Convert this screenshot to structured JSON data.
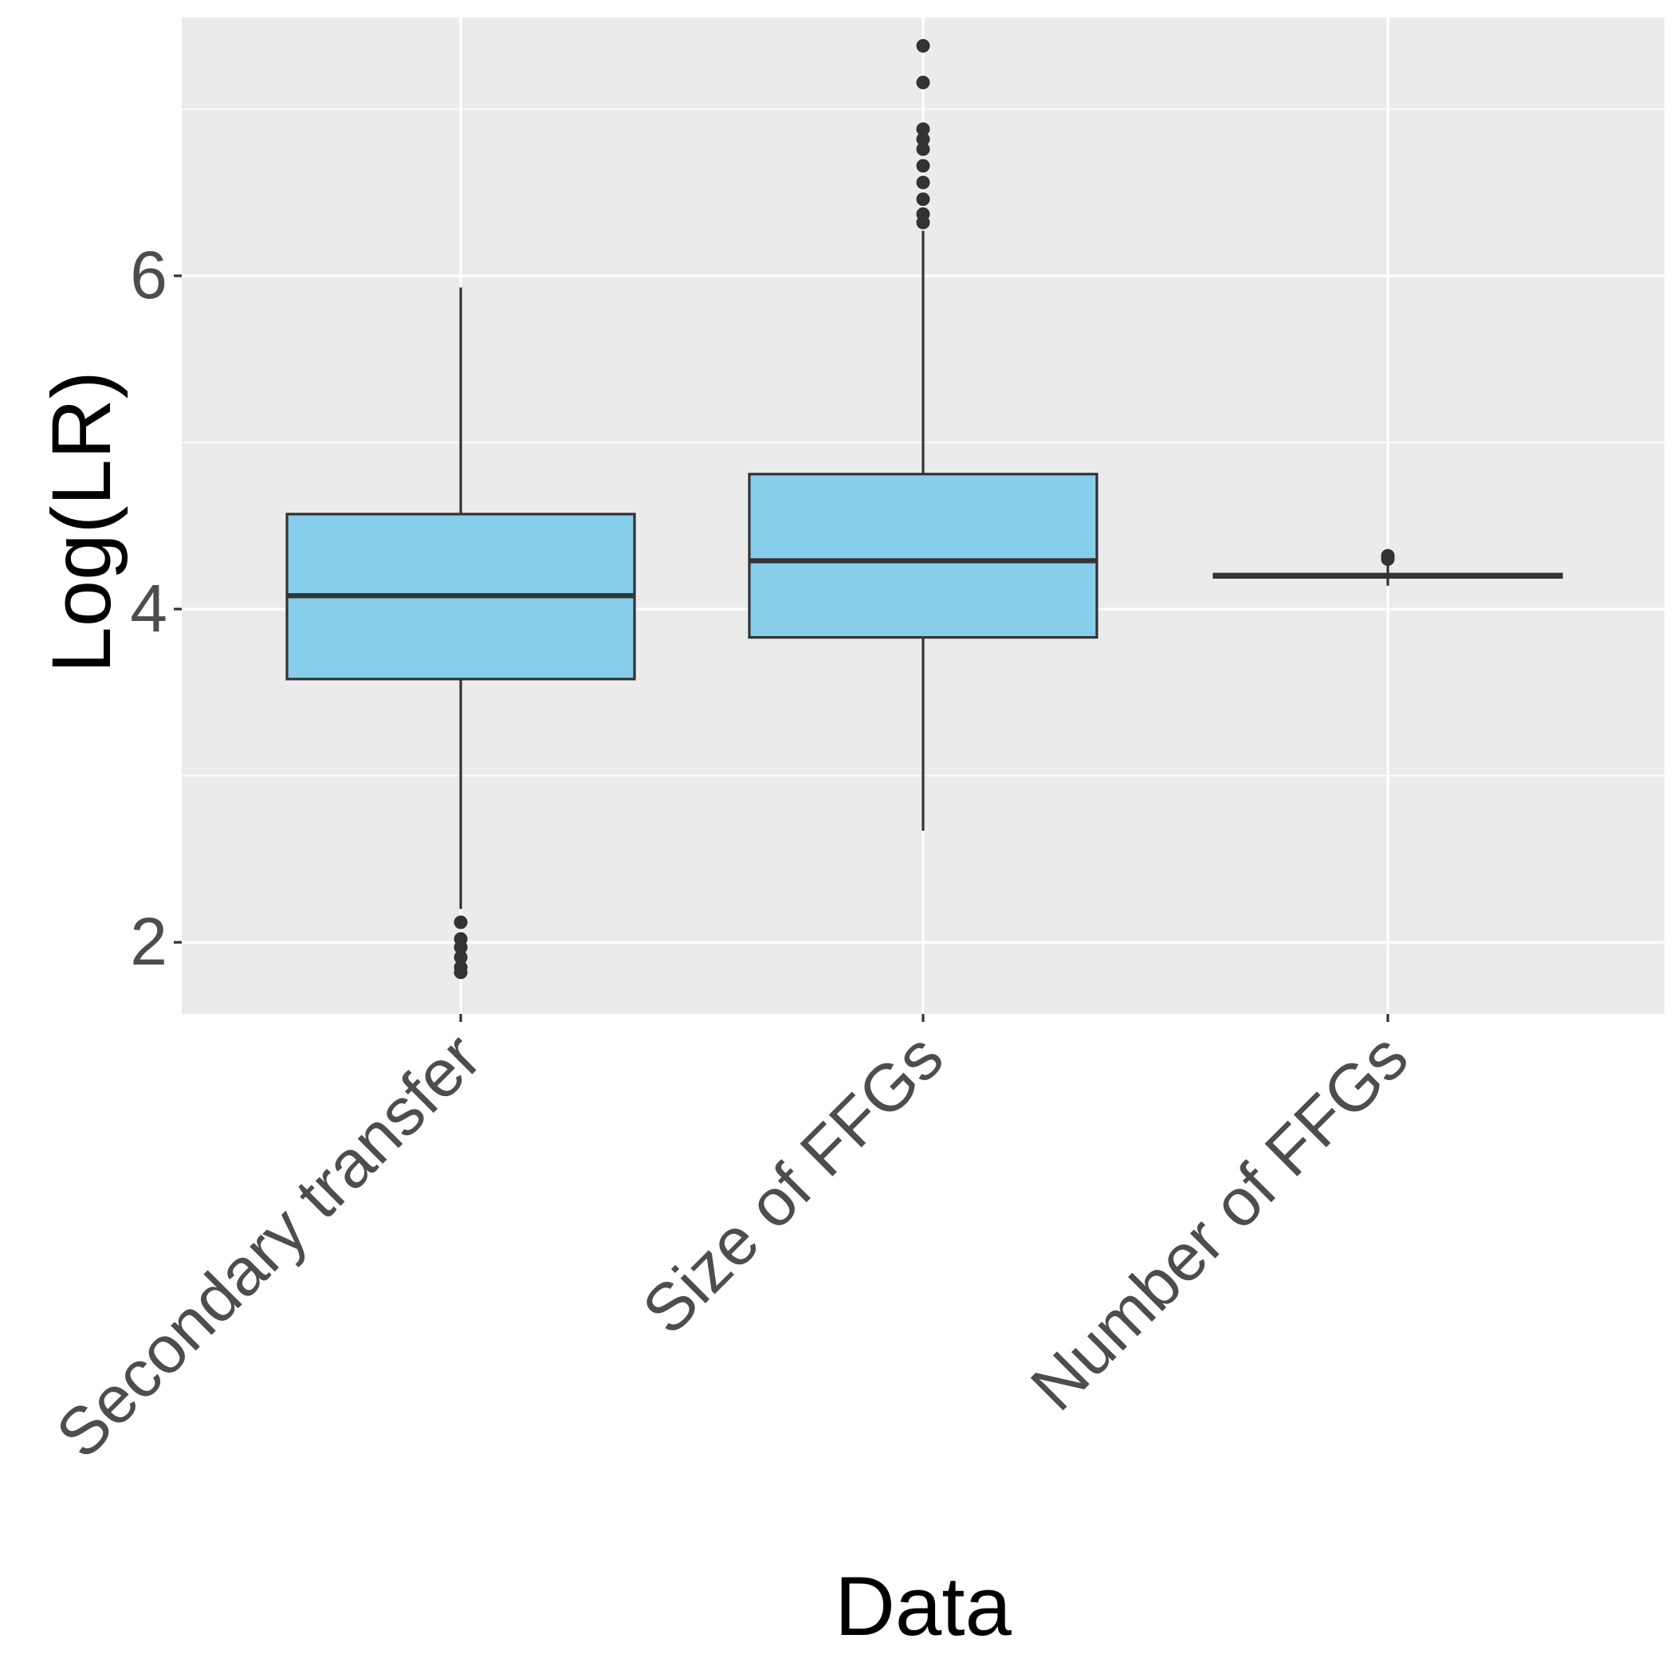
{
  "chart_data": {
    "type": "boxplot",
    "xlabel": "Data",
    "ylabel": "Log(LR)",
    "categories": [
      "Secondary transfer",
      "Size of FFGs",
      "Number of FFGs"
    ],
    "ylim": [
      1.57,
      7.55
    ],
    "y_ticks": [
      2,
      4,
      6
    ],
    "y_minor_gridlines": [
      3,
      5,
      7
    ],
    "grid": true,
    "legend": "none",
    "boxes": [
      {
        "category": "Secondary transfer",
        "whisker_low": 2.2,
        "q1": 3.58,
        "median": 4.08,
        "q3": 4.57,
        "whisker_high": 5.93,
        "outliers": [
          2.12,
          2.02,
          1.97,
          1.91,
          1.85,
          1.82
        ]
      },
      {
        "category": "Size of FFGs",
        "whisker_low": 2.67,
        "q1": 3.83,
        "median": 4.29,
        "q3": 4.81,
        "whisker_high": 6.27,
        "outliers": [
          7.38,
          7.16,
          6.88,
          6.82,
          6.76,
          6.66,
          6.56,
          6.46,
          6.37,
          6.32
        ]
      },
      {
        "category": "Number of FFGs",
        "whisker_low": 4.14,
        "q1": 4.19,
        "median": 4.2,
        "q3": 4.21,
        "whisker_high": 4.27,
        "outliers": [
          4.32,
          4.3
        ]
      }
    ],
    "colors": {
      "panel_background": "#ebebeb",
      "grid": "#ffffff",
      "box_fill": "#87ceeb",
      "box_line": "#333333",
      "outlier": "#333333",
      "tick_text": "#4d4d4d",
      "title_text": "#000000"
    }
  }
}
